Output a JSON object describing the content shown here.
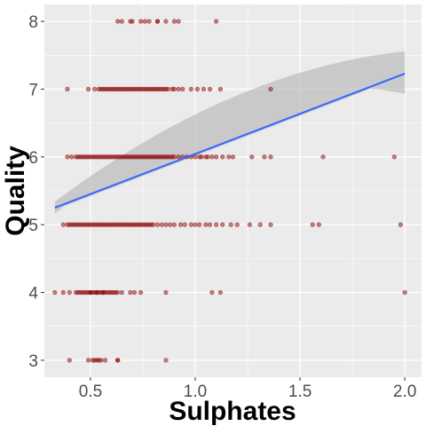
{
  "chart_data": {
    "type": "scatter",
    "title": "",
    "xlabel": "Sulphates",
    "ylabel": "Quality",
    "xlim": [
      0.28,
      2.08
    ],
    "ylim": [
      2.75,
      8.25
    ],
    "x_ticks": [
      0.5,
      1.0,
      1.5,
      2.0
    ],
    "x_tick_labels": [
      "0.5",
      "1.0",
      "1.5",
      "2.0"
    ],
    "y_ticks": [
      3,
      4,
      5,
      6,
      7,
      8
    ],
    "y_tick_labels": [
      "3",
      "4",
      "5",
      "6",
      "7",
      "8"
    ],
    "grid": true,
    "legend": "none",
    "colors": {
      "panel": "#ebebeb",
      "grid": "#ffffff",
      "point": "#8b0000",
      "fit_line": "#3366ff",
      "confidence_band": "#b3b3b3"
    },
    "points": [
      {
        "quality": 3,
        "sulphates": [
          0.4,
          0.49,
          0.51,
          0.52,
          0.53,
          0.54,
          0.55,
          0.57,
          0.63,
          0.63,
          0.86
        ]
      },
      {
        "quality": 4,
        "sulphates": [
          0.33,
          0.37,
          0.4,
          0.43,
          0.44,
          0.45,
          0.46,
          0.47,
          0.48,
          0.49,
          0.5,
          0.5,
          0.51,
          0.52,
          0.53,
          0.53,
          0.54,
          0.55,
          0.56,
          0.56,
          0.57,
          0.58,
          0.59,
          0.6,
          0.61,
          0.62,
          0.63,
          0.65,
          0.69,
          0.71,
          0.74,
          0.86,
          1.08,
          1.12,
          2.0
        ]
      },
      {
        "quality": 5,
        "sulphates": [
          0.37,
          0.39,
          0.4,
          0.41,
          0.42,
          0.43,
          0.44,
          0.45,
          0.46,
          0.47,
          0.48,
          0.49,
          0.5,
          0.51,
          0.52,
          0.53,
          0.54,
          0.55,
          0.56,
          0.57,
          0.58,
          0.59,
          0.6,
          0.61,
          0.62,
          0.63,
          0.64,
          0.65,
          0.66,
          0.67,
          0.68,
          0.69,
          0.7,
          0.71,
          0.72,
          0.73,
          0.74,
          0.75,
          0.76,
          0.77,
          0.78,
          0.79,
          0.8,
          0.82,
          0.84,
          0.86,
          0.88,
          0.9,
          0.93,
          0.95,
          0.98,
          1.0,
          1.02,
          1.05,
          1.07,
          1.1,
          1.13,
          1.17,
          1.2,
          1.26,
          1.31,
          1.36,
          1.56,
          1.59,
          1.98
        ]
      },
      {
        "quality": 6,
        "sulphates": [
          0.39,
          0.41,
          0.43,
          0.44,
          0.45,
          0.46,
          0.47,
          0.48,
          0.49,
          0.5,
          0.51,
          0.52,
          0.53,
          0.54,
          0.55,
          0.56,
          0.57,
          0.58,
          0.59,
          0.6,
          0.61,
          0.62,
          0.63,
          0.64,
          0.65,
          0.66,
          0.67,
          0.68,
          0.69,
          0.7,
          0.71,
          0.72,
          0.73,
          0.74,
          0.75,
          0.76,
          0.77,
          0.78,
          0.79,
          0.8,
          0.81,
          0.82,
          0.83,
          0.84,
          0.85,
          0.86,
          0.87,
          0.88,
          0.89,
          0.9,
          0.92,
          0.94,
          0.96,
          0.98,
          1.0,
          1.02,
          1.03,
          1.05,
          1.06,
          1.08,
          1.1,
          1.13,
          1.16,
          1.18,
          1.27,
          1.33,
          1.36,
          1.61,
          1.95
        ]
      },
      {
        "quality": 7,
        "sulphates": [
          0.39,
          0.49,
          0.52,
          0.54,
          0.55,
          0.56,
          0.57,
          0.58,
          0.59,
          0.6,
          0.61,
          0.62,
          0.63,
          0.64,
          0.65,
          0.66,
          0.67,
          0.68,
          0.69,
          0.7,
          0.71,
          0.72,
          0.73,
          0.74,
          0.75,
          0.76,
          0.77,
          0.78,
          0.79,
          0.8,
          0.81,
          0.82,
          0.83,
          0.84,
          0.85,
          0.86,
          0.87,
          0.89,
          0.9,
          0.92,
          0.94,
          0.98,
          1.01,
          1.04,
          1.07,
          1.12,
          1.36
        ]
      },
      {
        "quality": 8,
        "sulphates": [
          0.63,
          0.65,
          0.69,
          0.7,
          0.74,
          0.76,
          0.78,
          0.82,
          0.82,
          0.86,
          0.9,
          0.92,
          1.1
        ]
      }
    ],
    "fit": {
      "method": "linear",
      "x": [
        0.33,
        2.0
      ],
      "y": [
        5.25,
        7.23
      ],
      "ci_lower": [
        5.16,
        6.93
      ],
      "ci_upper": [
        5.34,
        7.56
      ],
      "ci_at_mean": [
        5.96,
        6.04
      ]
    }
  }
}
